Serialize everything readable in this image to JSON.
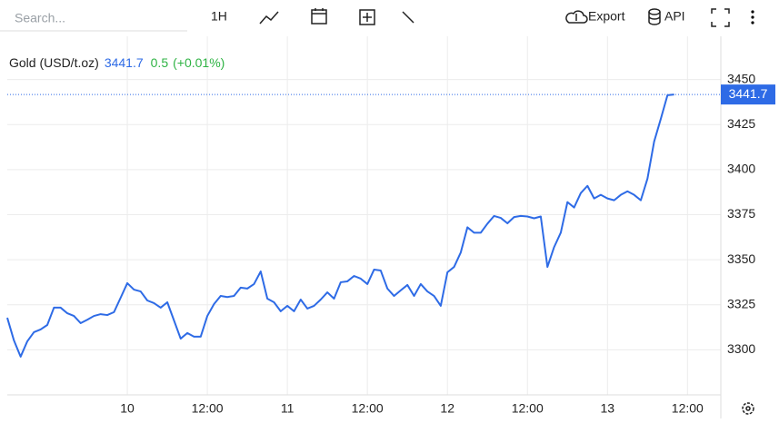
{
  "toolbar": {
    "search_placeholder": "Search...",
    "interval": "1H",
    "export": "Export",
    "api": "API"
  },
  "chart_data": {
    "type": "line",
    "title": "Gold (USD/t.oz)",
    "change": 0.5,
    "change_pct": "(+0.01%)",
    "change_color": "#2fb344",
    "x": [
      -18,
      -17,
      -16,
      -15,
      -14,
      -13,
      -12,
      -11,
      -10,
      -9,
      -8,
      -7,
      -6,
      -5,
      -4,
      -3,
      -2,
      -1,
      0,
      1,
      2,
      3,
      4,
      5,
      6,
      7,
      8,
      9,
      10,
      11,
      12,
      13,
      14,
      15,
      16,
      17,
      18,
      19,
      20,
      21,
      22,
      23,
      24,
      25,
      26,
      27,
      28,
      29,
      30,
      31,
      32,
      33,
      34,
      35,
      36,
      37,
      38,
      39,
      40,
      41,
      42,
      43,
      44,
      45,
      46,
      47,
      48,
      49,
      50,
      51,
      52,
      53,
      54,
      55,
      56,
      57,
      58,
      59,
      60,
      61,
      62,
      63,
      64,
      65,
      66,
      67,
      68,
      69,
      70,
      71,
      72,
      73,
      74,
      75,
      76,
      77,
      78,
      79,
      80,
      81,
      82
    ],
    "series": [
      {
        "name": "Gold",
        "color": "#2e6be6",
        "values": [
          3317.8,
          3305.2,
          3296.2,
          3304.7,
          3309.8,
          3311.3,
          3313.8,
          3323.4,
          3323.4,
          3320.3,
          3318.8,
          3314.8,
          3316.7,
          3318.8,
          3319.8,
          3319.3,
          3320.9,
          3328.9,
          3337,
          3333.4,
          3332.4,
          3327.4,
          3325.9,
          3323.4,
          3326.4,
          3316.3,
          3306.2,
          3309.3,
          3307.3,
          3307.3,
          3318.8,
          3325.4,
          3329.9,
          3329.3,
          3329.9,
          3334.5,
          3334,
          3336.5,
          3343.5,
          3328.4,
          3326.4,
          3321.4,
          3324.4,
          3321.4,
          3327.9,
          3322.9,
          3324.4,
          3327.9,
          3331.9,
          3328.4,
          3337.5,
          3338,
          3341,
          3339.5,
          3336.5,
          3344.5,
          3344,
          3334,
          3329.9,
          3333,
          3336,
          3329.9,
          3336.5,
          3332.4,
          3329.9,
          3324.4,
          3343,
          3346,
          3354,
          3368,
          3365,
          3365,
          3370,
          3374.3,
          3373.2,
          3370.2,
          3373.7,
          3374.3,
          3374,
          3373,
          3374,
          3346,
          3357,
          3365,
          3382,
          3379,
          3387,
          3391,
          3384,
          3386,
          3384,
          3383,
          3386,
          3388,
          3386,
          3383,
          3395,
          3415.6,
          3428.2,
          3441.3,
          3441.7
        ]
      }
    ],
    "xlim": [
      -18,
      89
    ],
    "xticks": [
      {
        "value": 0,
        "label": "10"
      },
      {
        "value": 12,
        "label": "12:00"
      },
      {
        "value": 24,
        "label": "11"
      },
      {
        "value": 36,
        "label": "12:00"
      },
      {
        "value": 48,
        "label": "12"
      },
      {
        "value": 60,
        "label": "12:00"
      },
      {
        "value": 72,
        "label": "13"
      },
      {
        "value": 84,
        "label": "12:00"
      }
    ],
    "ylim": [
      3275,
      3474
    ],
    "yticks": [
      3300,
      3325,
      3350,
      3375,
      3400,
      3425,
      3450
    ],
    "grid": true
  }
}
